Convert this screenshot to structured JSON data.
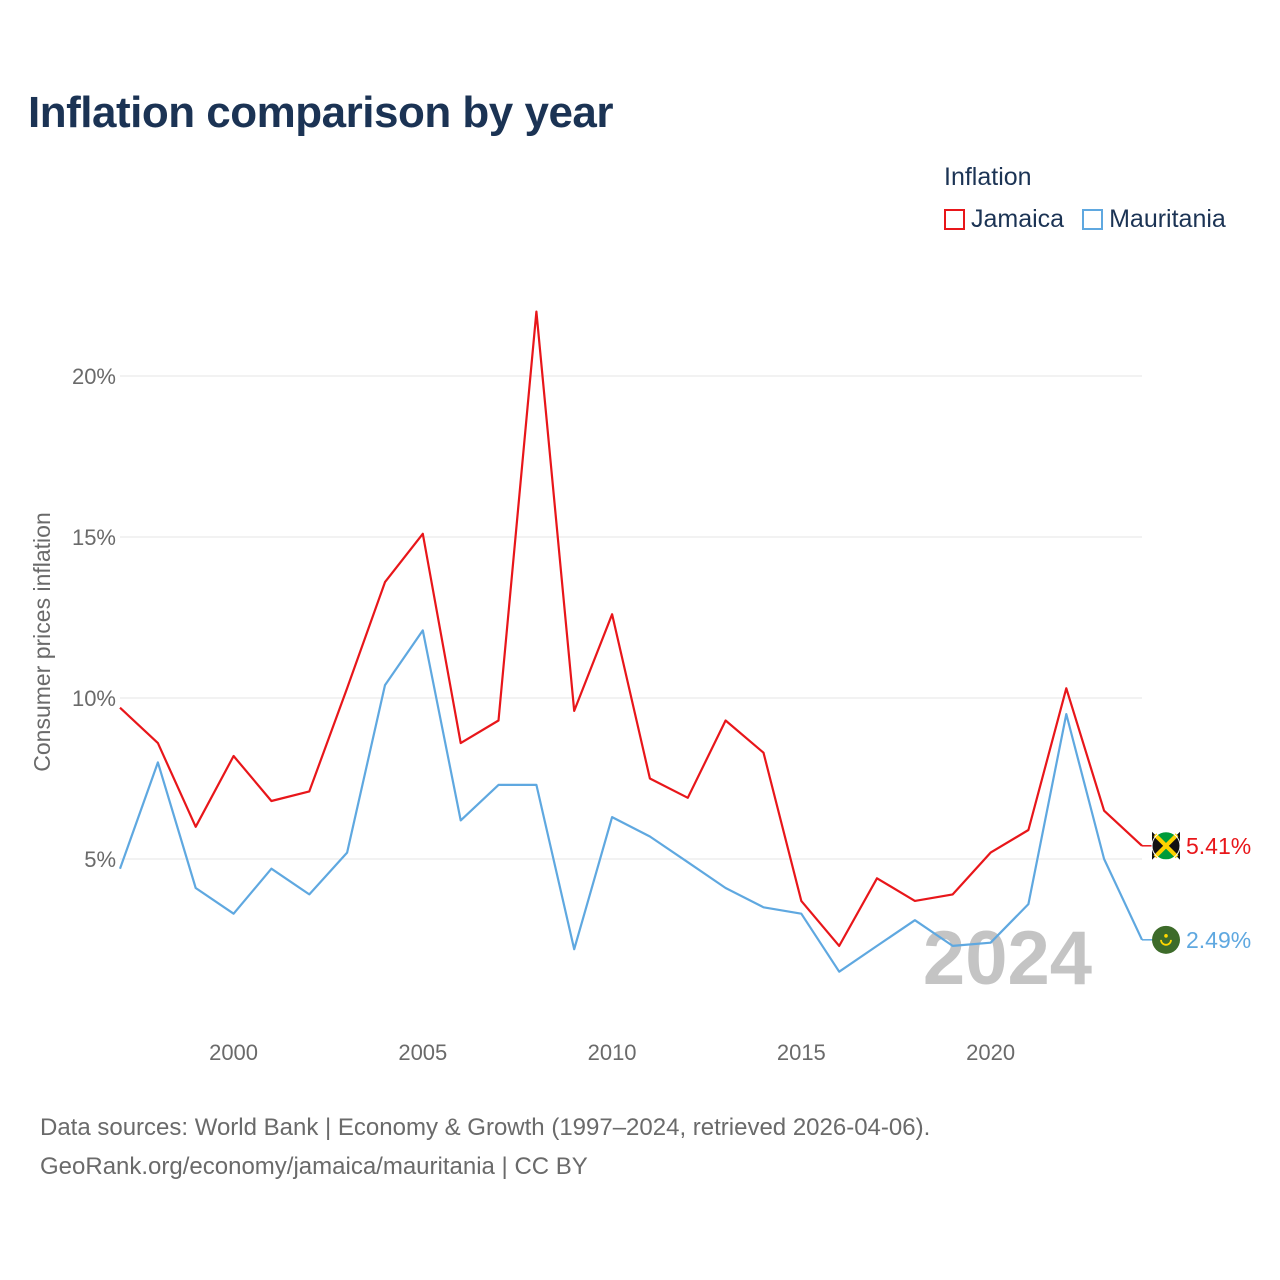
{
  "chart_data": {
    "type": "line",
    "title": "Inflation comparison by year",
    "legend_title": "Inflation",
    "ylabel": "Consumer prices inflation",
    "xlabel": "",
    "xlim": [
      1997,
      2024
    ],
    "ylim": [
      0,
      22
    ],
    "x_ticks": [
      2000,
      2005,
      2010,
      2015,
      2020
    ],
    "x_tick_labels": [
      "2000",
      "2005",
      "2010",
      "2015",
      "2020"
    ],
    "y_ticks": [
      5,
      10,
      15,
      20
    ],
    "y_tick_labels": [
      "5%",
      "10%",
      "15%",
      "20%"
    ],
    "grid": true,
    "watermark_year": "2024",
    "x": [
      1997,
      1998,
      1999,
      2000,
      2001,
      2002,
      2003,
      2004,
      2005,
      2006,
      2007,
      2008,
      2009,
      2010,
      2011,
      2012,
      2013,
      2014,
      2015,
      2016,
      2017,
      2018,
      2019,
      2020,
      2021,
      2022,
      2023,
      2024
    ],
    "series": [
      {
        "name": "Jamaica",
        "color": "#e8161a",
        "end_label": "5.41%",
        "values": [
          9.7,
          8.6,
          6.0,
          8.2,
          6.8,
          7.1,
          10.3,
          13.6,
          15.1,
          8.6,
          9.3,
          22.0,
          9.6,
          12.6,
          7.5,
          6.9,
          9.3,
          8.3,
          3.7,
          2.3,
          4.4,
          3.7,
          3.9,
          5.2,
          5.9,
          10.3,
          6.5,
          5.41
        ],
        "end_icon": "jamaica-flag-icon"
      },
      {
        "name": "Mauritania",
        "color": "#5fa8e0",
        "end_label": "2.49%",
        "values": [
          4.7,
          8.0,
          4.1,
          3.3,
          4.7,
          3.9,
          5.2,
          10.4,
          12.1,
          6.2,
          7.3,
          7.3,
          2.2,
          6.3,
          5.7,
          4.9,
          4.1,
          3.5,
          3.3,
          1.5,
          2.3,
          3.1,
          2.3,
          2.4,
          3.6,
          9.5,
          5.0,
          2.49
        ],
        "end_icon": "mauritania-flag-icon"
      }
    ]
  },
  "footer": {
    "line1": "Data sources: World Bank | Economy & Growth (1997–2024, retrieved 2026-04-06).",
    "line2": "GeoRank.org/economy/jamaica/mauritania | CC BY"
  }
}
